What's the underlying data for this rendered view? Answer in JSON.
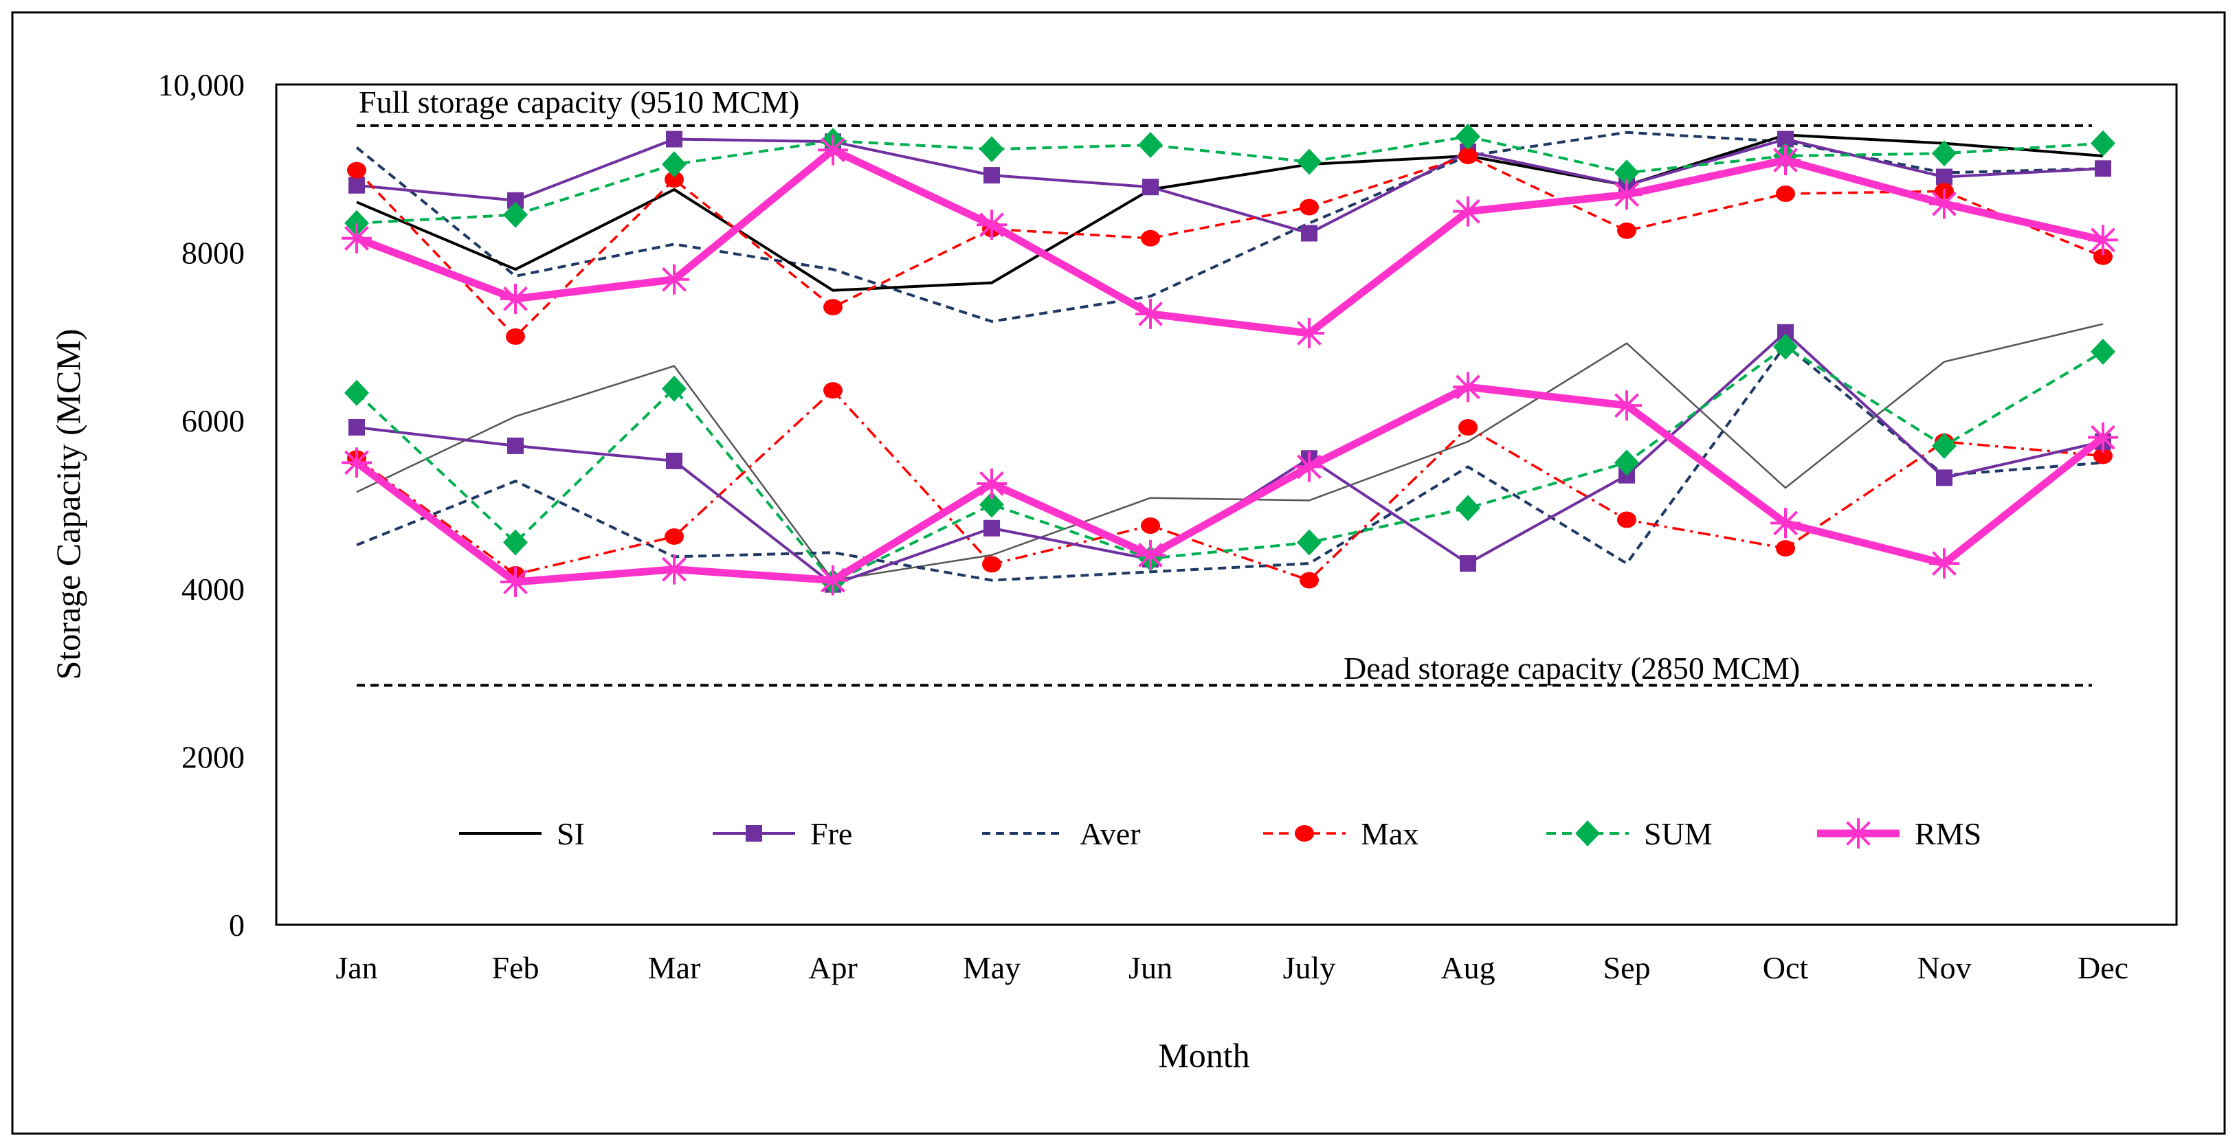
{
  "chart_data": {
    "type": "line",
    "title": "",
    "xlabel": "Month",
    "ylabel": "Storage Capacity (MCM)",
    "ylim": [
      0,
      10000
    ],
    "yticks": [
      {
        "value": 0,
        "label": "0"
      },
      {
        "value": 2000,
        "label": "2000"
      },
      {
        "value": 4000,
        "label": "4000"
      },
      {
        "value": 6000,
        "label": "6000"
      },
      {
        "value": 8000,
        "label": "8000"
      },
      {
        "value": 10000,
        "label": "10,000"
      }
    ],
    "categories": [
      "Jan",
      "Feb",
      "Mar",
      "Apr",
      "May",
      "Jun",
      "July",
      "Aug",
      "Sep",
      "Oct",
      "Nov",
      "Dec"
    ],
    "reference_lines": [
      {
        "name": "full-storage",
        "value": 9510,
        "label": "Full storage capacity (9510 MCM)"
      },
      {
        "name": "dead-storage",
        "value": 2850,
        "label": "Dead storage capacity (2850 MCM)"
      }
    ],
    "legend": [
      {
        "key": "SI",
        "label": "SI"
      },
      {
        "key": "Fre",
        "label": "Fre"
      },
      {
        "key": "Aver",
        "label": "Aver"
      },
      {
        "key": "Max",
        "label": "Max"
      },
      {
        "key": "SUM",
        "label": "SUM"
      },
      {
        "key": "RMS",
        "label": "RMS"
      }
    ],
    "series": [
      {
        "name": "SI",
        "group": "upper",
        "style": "SI",
        "values": [
          8600,
          7800,
          8750,
          7550,
          7640,
          8750,
          9050,
          9150,
          8800,
          9400,
          9300,
          9150
        ]
      },
      {
        "name": "SI",
        "group": "lower",
        "style": "SI-thin",
        "values": [
          5150,
          6050,
          6650,
          4100,
          4400,
          5080,
          5050,
          5750,
          6920,
          5200,
          6700,
          7150
        ]
      },
      {
        "name": "Fre",
        "group": "upper",
        "style": "Fre",
        "values": [
          8800,
          8620,
          9350,
          9320,
          8920,
          8780,
          8230,
          9200,
          8800,
          9350,
          8900,
          9000
        ]
      },
      {
        "name": "Fre",
        "group": "lower",
        "style": "Fre",
        "values": [
          5920,
          5700,
          5520,
          4050,
          4720,
          4350,
          5550,
          4300,
          5350,
          7050,
          5320,
          5750
        ]
      },
      {
        "name": "Aver",
        "group": "upper",
        "style": "Aver",
        "values": [
          9250,
          7720,
          8100,
          7800,
          7180,
          7480,
          8350,
          9150,
          9430,
          9320,
          8950,
          9000
        ]
      },
      {
        "name": "Aver",
        "group": "lower",
        "style": "Aver",
        "values": [
          4520,
          5280,
          4380,
          4430,
          4100,
          4200,
          4300,
          5450,
          4300,
          6900,
          5350,
          5500
        ]
      },
      {
        "name": "Max",
        "group": "upper",
        "style": "Max",
        "values": [
          8980,
          7000,
          8870,
          7350,
          8280,
          8170,
          8540,
          9150,
          8260,
          8700,
          8730,
          7950
        ]
      },
      {
        "name": "Max",
        "group": "lower",
        "style": "Max-dashdot",
        "values": [
          5550,
          4170,
          4620,
          6360,
          4290,
          4750,
          4100,
          5920,
          4820,
          4480,
          5750,
          5580
        ]
      },
      {
        "name": "SUM",
        "group": "upper",
        "style": "SUM",
        "values": [
          8350,
          8450,
          9050,
          9330,
          9230,
          9280,
          9080,
          9380,
          8950,
          9150,
          9180,
          9300
        ]
      },
      {
        "name": "SUM",
        "group": "lower",
        "style": "SUM",
        "values": [
          6330,
          4550,
          6380,
          4080,
          5000,
          4360,
          4550,
          4960,
          5500,
          6880,
          5700,
          6820
        ]
      },
      {
        "name": "RMS",
        "group": "upper",
        "style": "RMS",
        "values": [
          8170,
          7450,
          7680,
          9220,
          8330,
          7270,
          7040,
          8490,
          8690,
          9100,
          8580,
          8150
        ]
      },
      {
        "name": "RMS",
        "group": "lower",
        "style": "RMS",
        "values": [
          5500,
          4080,
          4230,
          4100,
          5250,
          4400,
          5450,
          6400,
          6180,
          4780,
          4300,
          5800
        ]
      }
    ],
    "colors": {
      "SI": "#000000",
      "Fre": "#7030a0",
      "Aver": "#1f3864",
      "Max": "#ff0000",
      "SUM": "#00b050",
      "RMS": "#ff33cc",
      "reference": "#000000"
    }
  }
}
